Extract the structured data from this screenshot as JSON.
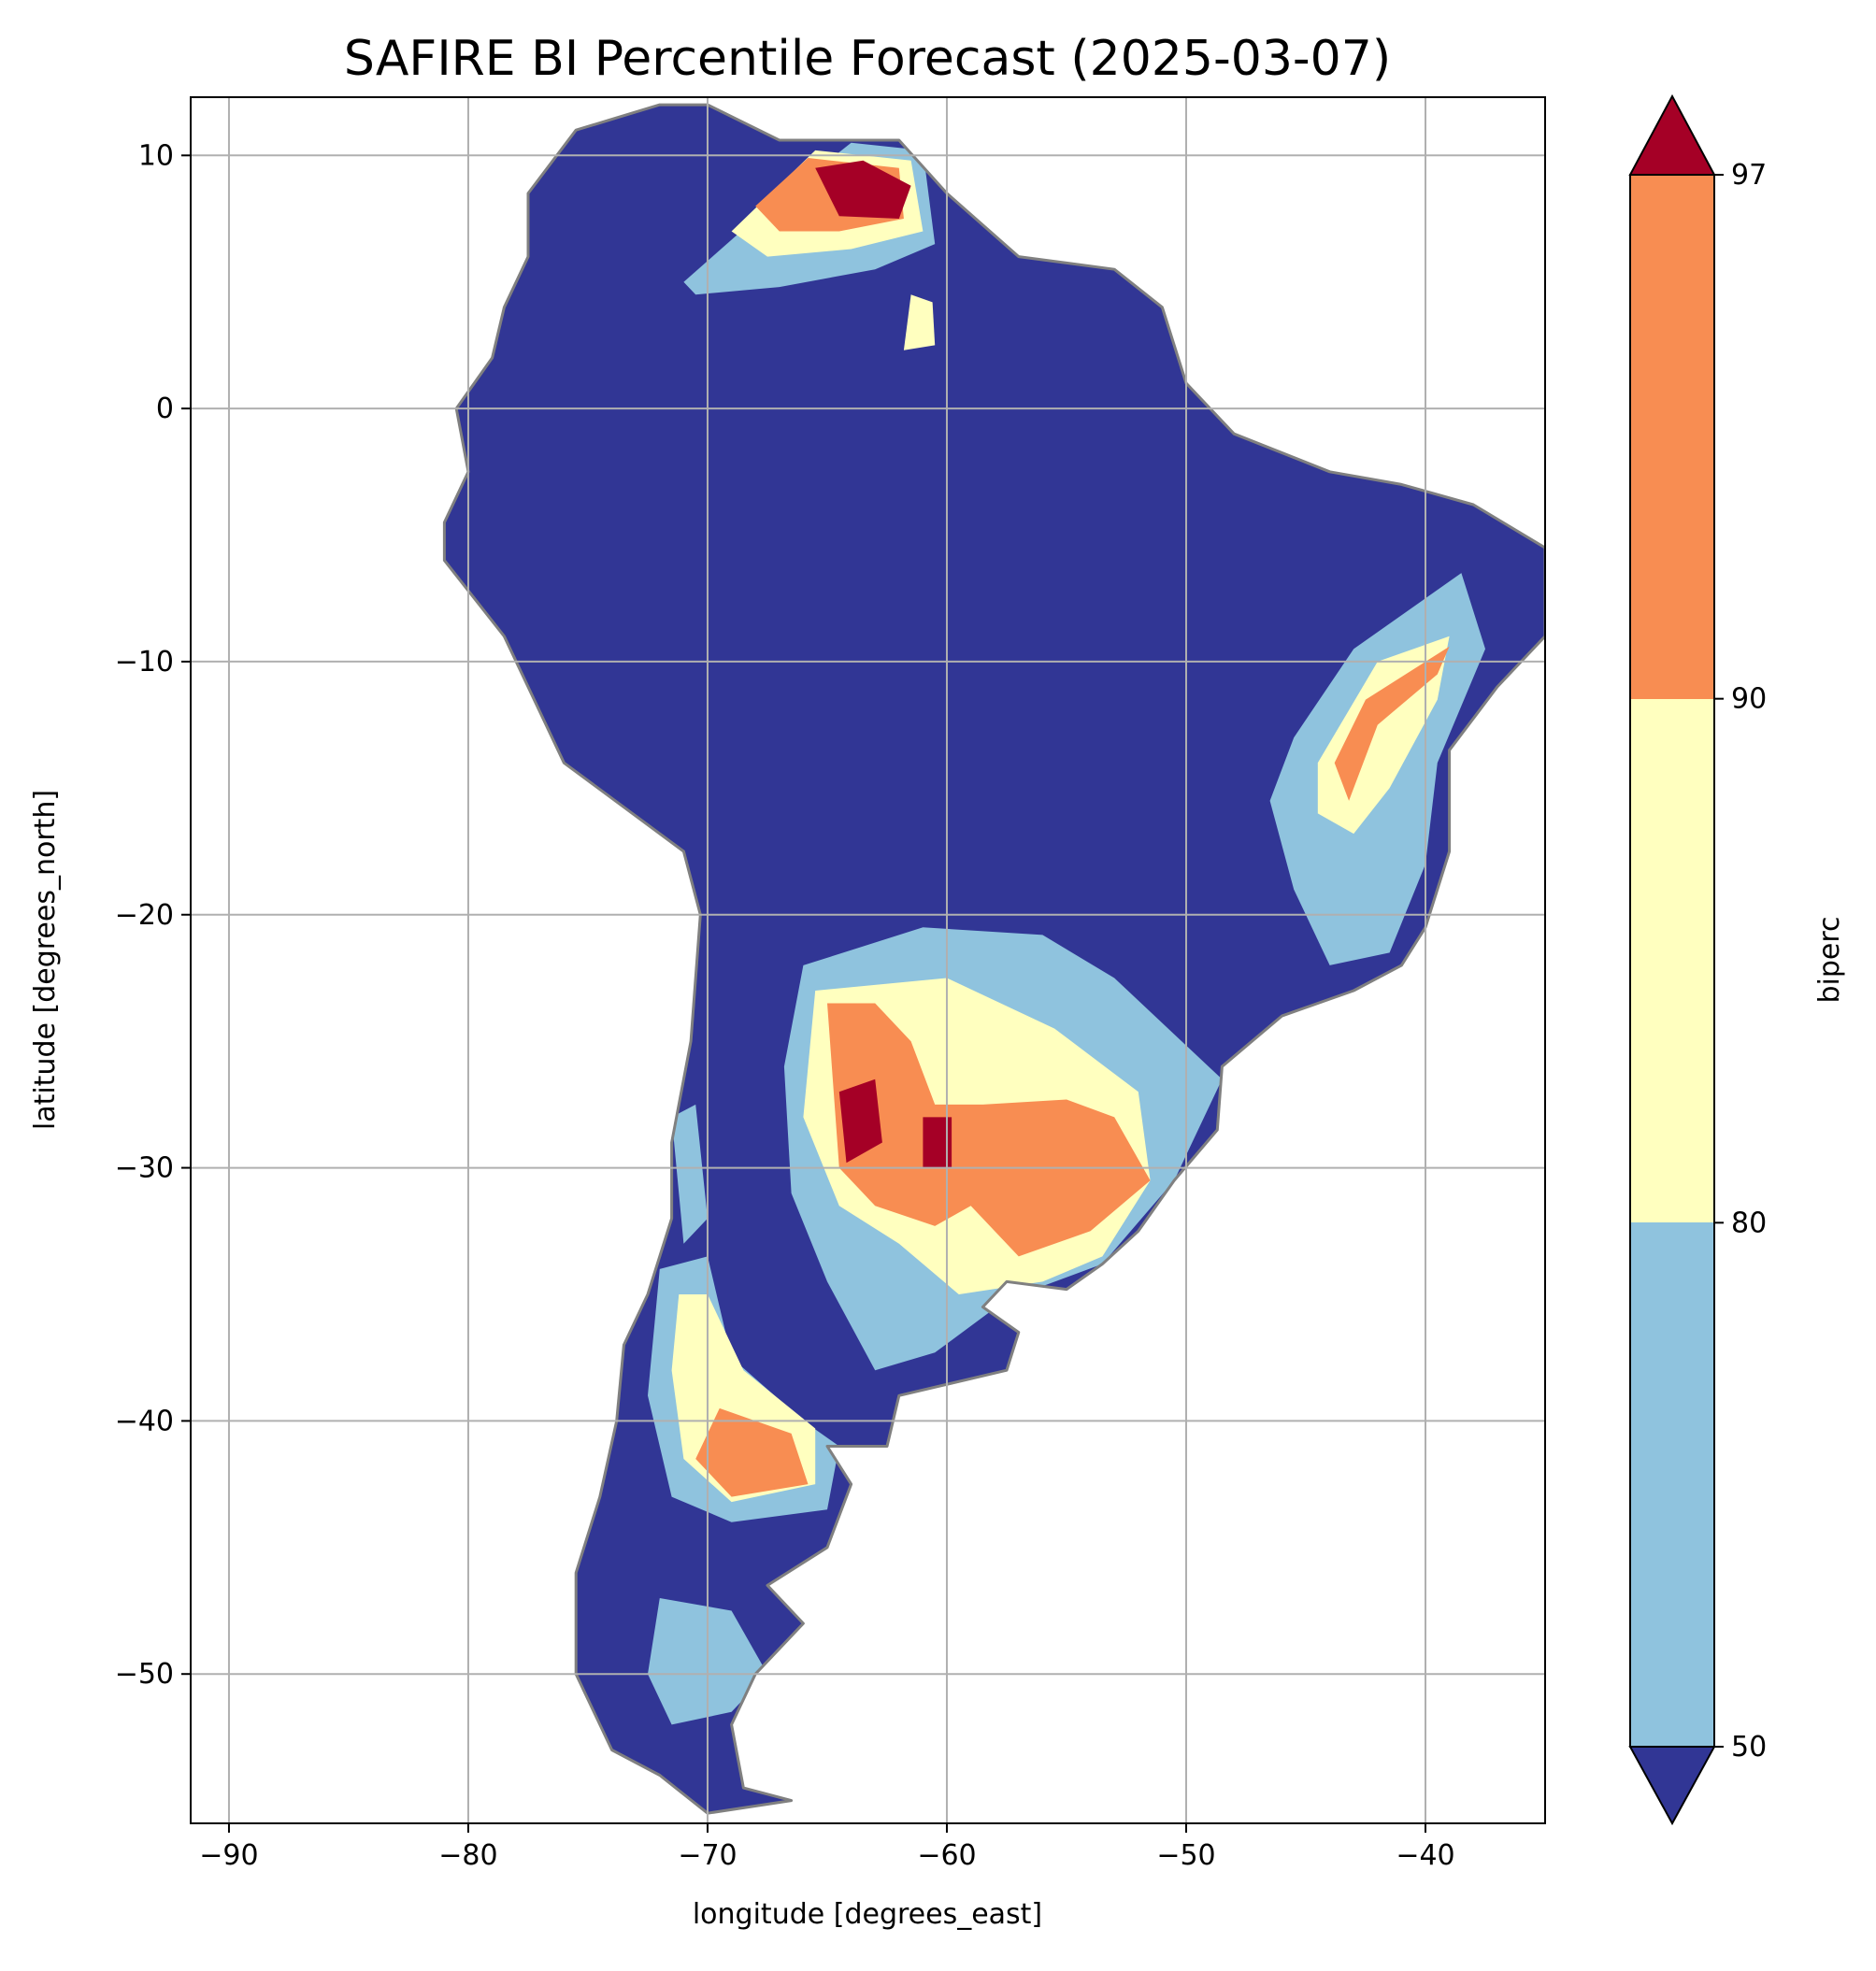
{
  "chart_data": {
    "type": "heatmap",
    "title": "SAFIRE BI Percentile Forecast (2025-03-07)",
    "xlabel": "longitude [degrees_east]",
    "ylabel": "latitude [degrees_north]",
    "xlim": [
      -91.6,
      -35.0
    ],
    "ylim": [
      -55.9,
      12.3
    ],
    "grid": true,
    "x_ticks": [
      {
        "value": -90,
        "label": "−90"
      },
      {
        "value": -80,
        "label": "−80"
      },
      {
        "value": -70,
        "label": "−70"
      },
      {
        "value": -60,
        "label": "−60"
      },
      {
        "value": -50,
        "label": "−50"
      },
      {
        "value": -40,
        "label": "−40"
      }
    ],
    "y_ticks": [
      {
        "value": 10,
        "label": "10"
      },
      {
        "value": 0,
        "label": "0"
      },
      {
        "value": -10,
        "label": "−10"
      },
      {
        "value": -20,
        "label": "−20"
      },
      {
        "value": -30,
        "label": "−30"
      },
      {
        "value": -40,
        "label": "−40"
      },
      {
        "value": -50,
        "label": "−50"
      }
    ],
    "colorbar": {
      "label": "biperc",
      "extend": "both",
      "levels": [
        50,
        80,
        90,
        97
      ],
      "tick_labels": [
        "50",
        "80",
        "90",
        "97"
      ],
      "colors": {
        "under": "#313695",
        "band_50_80": "#8fc3de",
        "band_80_90": "#ffffbf",
        "band_90_97": "#f88d52",
        "over": "#a50026"
      }
    },
    "land_outline": [
      [
        -77.5,
        8.5
      ],
      [
        -75.5,
        11
      ],
      [
        -72,
        12
      ],
      [
        -70,
        12
      ],
      [
        -67,
        10.6
      ],
      [
        -62,
        10.6
      ],
      [
        -60,
        8.5
      ],
      [
        -57,
        6
      ],
      [
        -53,
        5.5
      ],
      [
        -51,
        4
      ],
      [
        -50,
        1
      ],
      [
        -48,
        -1
      ],
      [
        -44,
        -2.5
      ],
      [
        -41,
        -3
      ],
      [
        -38,
        -3.8
      ],
      [
        -35,
        -5.5
      ],
      [
        -35,
        -9
      ],
      [
        -37,
        -11
      ],
      [
        -39,
        -13.5
      ],
      [
        -39,
        -17.5
      ],
      [
        -40,
        -20.5
      ],
      [
        -41,
        -22
      ],
      [
        -43,
        -23
      ],
      [
        -46,
        -24
      ],
      [
        -48.5,
        -26
      ],
      [
        -48.7,
        -28.5
      ],
      [
        -50.5,
        -30.5
      ],
      [
        -52,
        -32.5
      ],
      [
        -53.5,
        -33.8
      ],
      [
        -55,
        -34.8
      ],
      [
        -57.5,
        -34.5
      ],
      [
        -58.5,
        -35.5
      ],
      [
        -57,
        -36.5
      ],
      [
        -57.5,
        -38
      ],
      [
        -62,
        -39
      ],
      [
        -62.5,
        -41
      ],
      [
        -65,
        -41
      ],
      [
        -64,
        -42.5
      ],
      [
        -65,
        -45
      ],
      [
        -67.5,
        -46.5
      ],
      [
        -66,
        -48
      ],
      [
        -68,
        -50
      ],
      [
        -69,
        -52
      ],
      [
        -68.5,
        -54.5
      ],
      [
        -66.5,
        -55
      ],
      [
        -70,
        -55.5
      ],
      [
        -72,
        -54
      ],
      [
        -74,
        -53
      ],
      [
        -75.5,
        -50
      ],
      [
        -75.5,
        -46
      ],
      [
        -74.5,
        -43
      ],
      [
        -73.8,
        -40
      ],
      [
        -73.5,
        -37
      ],
      [
        -72.5,
        -35
      ],
      [
        -71.5,
        -32
      ],
      [
        -71.5,
        -29
      ],
      [
        -70.7,
        -25
      ],
      [
        -70.3,
        -20
      ],
      [
        -71,
        -17.5
      ],
      [
        -76,
        -14
      ],
      [
        -78.5,
        -9
      ],
      [
        -81,
        -6
      ],
      [
        -81,
        -4.5
      ],
      [
        -80,
        -2.5
      ],
      [
        -80.5,
        0
      ],
      [
        -79,
        2
      ],
      [
        -78.5,
        4
      ],
      [
        -77.5,
        6
      ]
    ],
    "region_fill": "#313695",
    "highlight_regions": [
      {
        "level": "band_50_80",
        "polygon": [
          [
            -71,
            5
          ],
          [
            -68,
            7.5
          ],
          [
            -64,
            10.5
          ],
          [
            -61,
            10.2
          ],
          [
            -60.5,
            6.5
          ],
          [
            -63,
            5.5
          ],
          [
            -67,
            4.8
          ],
          [
            -70.5,
            4.5
          ]
        ]
      },
      {
        "level": "band_80_90",
        "polygon": [
          [
            -69,
            7
          ],
          [
            -65.5,
            10.2
          ],
          [
            -61.5,
            9.8
          ],
          [
            -61,
            7
          ],
          [
            -64,
            6.3
          ],
          [
            -67.5,
            6
          ]
        ]
      },
      {
        "level": "band_90_97",
        "polygon": [
          [
            -68,
            8
          ],
          [
            -65.8,
            9.9
          ],
          [
            -62,
            9.5
          ],
          [
            -61.8,
            7.5
          ],
          [
            -64.5,
            7
          ],
          [
            -67,
            7
          ]
        ]
      },
      {
        "level": "over",
        "polygon": [
          [
            -65.5,
            9.5
          ],
          [
            -63.5,
            9.8
          ],
          [
            -61.5,
            8.8
          ],
          [
            -62,
            7.5
          ],
          [
            -64.5,
            7.6
          ]
        ]
      },
      {
        "level": "band_80_90",
        "polygon": [
          [
            -61.5,
            4.5
          ],
          [
            -60.6,
            4.2
          ],
          [
            -60.5,
            2.5
          ],
          [
            -61.8,
            2.3
          ]
        ]
      },
      {
        "level": "band_50_80",
        "polygon": [
          [
            -45.5,
            -13
          ],
          [
            -43,
            -9.5
          ],
          [
            -38.5,
            -6.5
          ],
          [
            -37.5,
            -9.5
          ],
          [
            -39.5,
            -14
          ],
          [
            -40,
            -18
          ],
          [
            -41.5,
            -21.5
          ],
          [
            -44,
            -22
          ],
          [
            -45.5,
            -19
          ],
          [
            -46.5,
            -15.5
          ]
        ]
      },
      {
        "level": "band_80_90",
        "polygon": [
          [
            -44.5,
            -14
          ],
          [
            -42,
            -10
          ],
          [
            -39,
            -9
          ],
          [
            -39.5,
            -11.5
          ],
          [
            -41.5,
            -15
          ],
          [
            -43,
            -16.8
          ],
          [
            -44.5,
            -16
          ]
        ]
      },
      {
        "level": "band_90_97",
        "polygon": [
          [
            -43.8,
            -14
          ],
          [
            -42.5,
            -11.5
          ],
          [
            -39,
            -9.4
          ],
          [
            -39.5,
            -10.5
          ],
          [
            -42,
            -12.5
          ],
          [
            -43.2,
            -15.5
          ]
        ]
      },
      {
        "level": "band_50_80",
        "polygon": [
          [
            -66,
            -22
          ],
          [
            -61,
            -20.5
          ],
          [
            -56,
            -20.8
          ],
          [
            -53,
            -22.5
          ],
          [
            -48.5,
            -26.5
          ],
          [
            -50.5,
            -30.5
          ],
          [
            -53.5,
            -33.8
          ],
          [
            -57.5,
            -35.2
          ],
          [
            -60.5,
            -37.3
          ],
          [
            -63,
            -38
          ],
          [
            -65,
            -34.5
          ],
          [
            -66.5,
            -31
          ],
          [
            -66.8,
            -26
          ]
        ]
      },
      {
        "level": "band_80_90",
        "polygon": [
          [
            -65.5,
            -23
          ],
          [
            -60,
            -22.5
          ],
          [
            -55.5,
            -24.5
          ],
          [
            -52,
            -27
          ],
          [
            -51.5,
            -30.5
          ],
          [
            -53.5,
            -33.5
          ],
          [
            -56,
            -34.5
          ],
          [
            -59.5,
            -35
          ],
          [
            -62,
            -33
          ],
          [
            -64.5,
            -31.5
          ],
          [
            -66,
            -28
          ]
        ]
      },
      {
        "level": "band_90_97",
        "polygon": [
          [
            -65,
            -23.5
          ],
          [
            -63,
            -23.5
          ],
          [
            -61.5,
            -25
          ],
          [
            -60.5,
            -27.5
          ],
          [
            -58.5,
            -27.5
          ],
          [
            -55,
            -27.3
          ],
          [
            -53,
            -28
          ],
          [
            -51.5,
            -30.5
          ],
          [
            -54,
            -32.5
          ],
          [
            -57,
            -33.5
          ],
          [
            -59,
            -31.5
          ],
          [
            -60.5,
            -32.3
          ],
          [
            -63,
            -31.5
          ],
          [
            -64.5,
            -30
          ]
        ]
      },
      {
        "level": "over",
        "polygon": [
          [
            -64.5,
            -27
          ],
          [
            -63,
            -26.5
          ],
          [
            -62.7,
            -29
          ],
          [
            -64.2,
            -29.8
          ]
        ]
      },
      {
        "level": "over",
        "polygon": [
          [
            -61,
            -28
          ],
          [
            -59.8,
            -28
          ],
          [
            -59.8,
            -30
          ],
          [
            -61,
            -30
          ]
        ]
      },
      {
        "level": "band_50_80",
        "polygon": [
          [
            -72,
            -34
          ],
          [
            -70,
            -33.5
          ],
          [
            -69,
            -37.5
          ],
          [
            -66,
            -40
          ],
          [
            -64.5,
            -41
          ],
          [
            -65,
            -43.5
          ],
          [
            -69,
            -44
          ],
          [
            -71.5,
            -43
          ],
          [
            -72.5,
            -39
          ]
        ]
      },
      {
        "level": "band_80_90",
        "polygon": [
          [
            -71.2,
            -35
          ],
          [
            -70,
            -35
          ],
          [
            -68.5,
            -38
          ],
          [
            -65.5,
            -40.3
          ],
          [
            -65.5,
            -42.5
          ],
          [
            -69,
            -43.2
          ],
          [
            -71,
            -41.5
          ],
          [
            -71.5,
            -38
          ]
        ]
      },
      {
        "level": "band_90_97",
        "polygon": [
          [
            -69.5,
            -39.5
          ],
          [
            -66.5,
            -40.5
          ],
          [
            -65.8,
            -42.5
          ],
          [
            -69,
            -43
          ],
          [
            -70.5,
            -41.5
          ]
        ]
      },
      {
        "level": "band_50_80",
        "polygon": [
          [
            -72,
            -47
          ],
          [
            -69,
            -47.5
          ],
          [
            -67.5,
            -50
          ],
          [
            -69,
            -51.5
          ],
          [
            -71.5,
            -52
          ],
          [
            -72.5,
            -50
          ]
        ]
      },
      {
        "level": "band_50_80",
        "polygon": [
          [
            -71.5,
            -28
          ],
          [
            -70.5,
            -27.5
          ],
          [
            -70,
            -32
          ],
          [
            -71,
            -33
          ]
        ]
      }
    ]
  }
}
